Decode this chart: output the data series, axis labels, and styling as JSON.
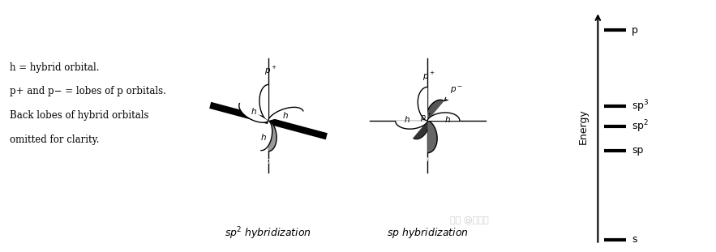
{
  "bg_color": "#ffffff",
  "text_legend_lines": [
    "h = hybrid orbital.",
    "p+ and p− = lobes of p orbitals.",
    "Back lobes of hybrid orbitals",
    "omitted for clarity."
  ],
  "sp2_label": "$\\it{sp}$$^2$ $\\it{hybridization}$",
  "sp_label": "$\\it{sp}$ $\\it{hybridization}$",
  "energy_levels": [
    {
      "label": "p",
      "yf": 0.88
    },
    {
      "label": "sp$^3$",
      "yf": 0.585
    },
    {
      "label": "sp$^2$",
      "yf": 0.505
    },
    {
      "label": "sp",
      "yf": 0.405
    },
    {
      "label": "s",
      "yf": 0.055
    }
  ],
  "watermark": "知乎 @火龙果"
}
